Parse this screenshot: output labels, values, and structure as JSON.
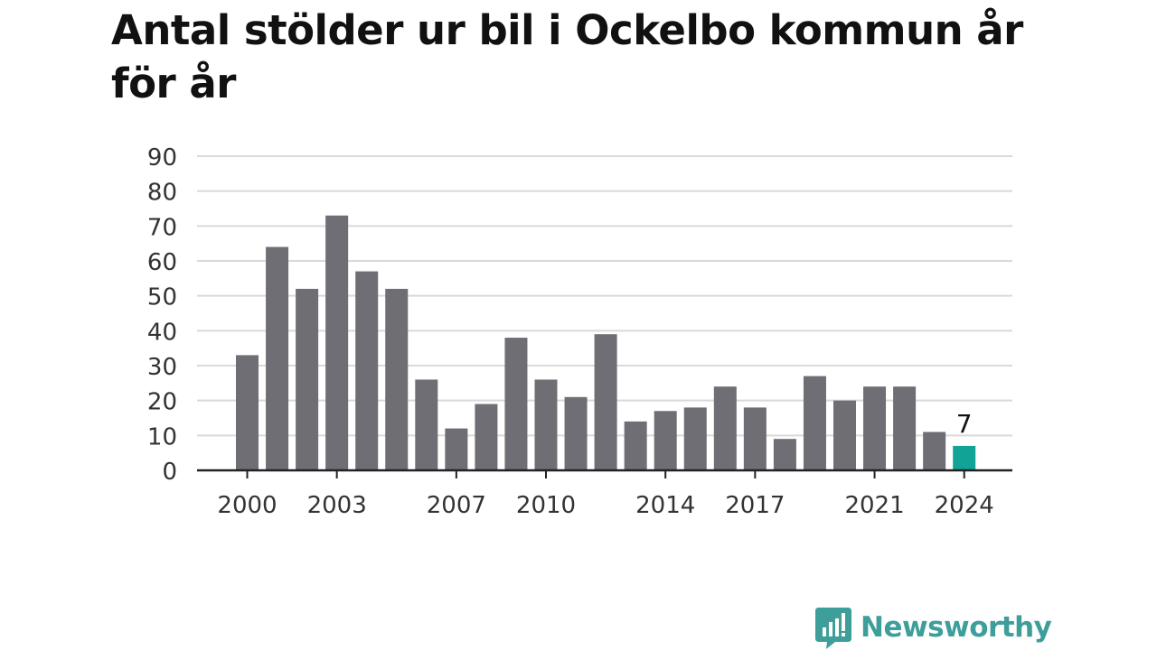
{
  "title": "Antal stölder ur bil i Ockelbo kommun år för år",
  "colors": {
    "bar": "#6e6e74",
    "highlight": "#10a396",
    "grid": "#d9d9d9",
    "axis": "#222222",
    "text": "#333333",
    "brand": "#3d9e9a"
  },
  "chart_data": {
    "type": "bar",
    "title": "Antal stölder ur bil i Ockelbo kommun år för år",
    "xlabel": "",
    "ylabel": "",
    "ylim": [
      0,
      90
    ],
    "yticks": [
      0,
      10,
      20,
      30,
      40,
      50,
      60,
      70,
      80,
      90
    ],
    "xtick_labels": [
      "2000",
      "2003",
      "2007",
      "2010",
      "2014",
      "2017",
      "2021",
      "2024"
    ],
    "grid": true,
    "categories": [
      "2000",
      "2001",
      "2002",
      "2003",
      "2004",
      "2005",
      "2006",
      "2007",
      "2008",
      "2009",
      "2010",
      "2011",
      "2012",
      "2013",
      "2014",
      "2015",
      "2016",
      "2017",
      "2018",
      "2019",
      "2020",
      "2021",
      "2022",
      "2023",
      "2024"
    ],
    "values": [
      33,
      64,
      52,
      73,
      57,
      52,
      26,
      12,
      19,
      38,
      26,
      21,
      39,
      14,
      17,
      18,
      24,
      18,
      9,
      27,
      20,
      24,
      24,
      11,
      7
    ],
    "highlight": {
      "category": "2024",
      "label": "7"
    }
  },
  "logo": {
    "text": "Newsworthy",
    "icon": "newsworthy-bar-chart-icon"
  }
}
